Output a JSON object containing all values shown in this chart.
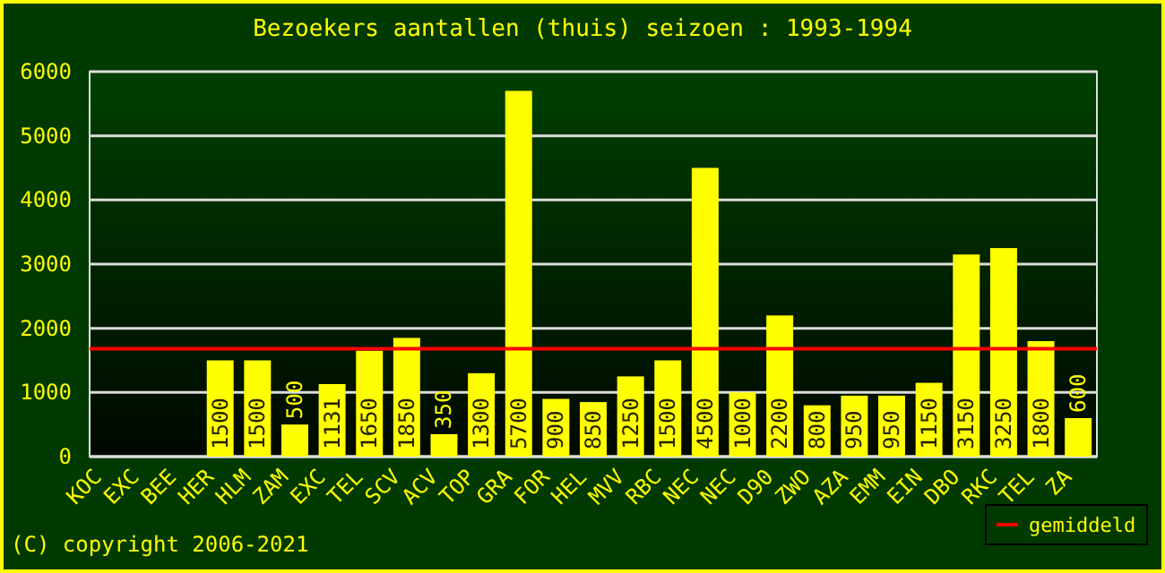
{
  "chart_data": {
    "type": "bar",
    "title": "Bezoekers aantallen (thuis) seizoen : 1993-1994",
    "categories": [
      "KOC",
      "EXC",
      "BEE",
      "HER",
      "HLM",
      "ZAM",
      "EXC",
      "TEL",
      "SCV",
      "ACV",
      "TOP",
      "GRA",
      "FOR",
      "HEL",
      "MVV",
      "RBC",
      "NEC",
      "NEC",
      "D90",
      "ZWO",
      "AZA",
      "EMM",
      "EIN",
      "DBO",
      "RKC",
      "TEL",
      "ZA"
    ],
    "values": [
      null,
      null,
      null,
      1500,
      1500,
      500,
      1131,
      1650,
      1850,
      350,
      1300,
      5700,
      900,
      850,
      1250,
      1500,
      4500,
      1000,
      2200,
      800,
      950,
      950,
      1150,
      3150,
      3250,
      1800,
      600
    ],
    "color": "#ffff00",
    "ylim": [
      0,
      6000
    ],
    "yticks": [
      0,
      1000,
      2000,
      3000,
      4000,
      5000,
      6000
    ],
    "grid": "y",
    "data_labels": true,
    "ref_lines": [
      {
        "axis": "y",
        "value": 1680,
        "label": "gemiddeld",
        "color": "#ff0000"
      }
    ],
    "legend": "bottom right",
    "annotations": [
      "(C) copyright 2006-2021"
    ]
  }
}
